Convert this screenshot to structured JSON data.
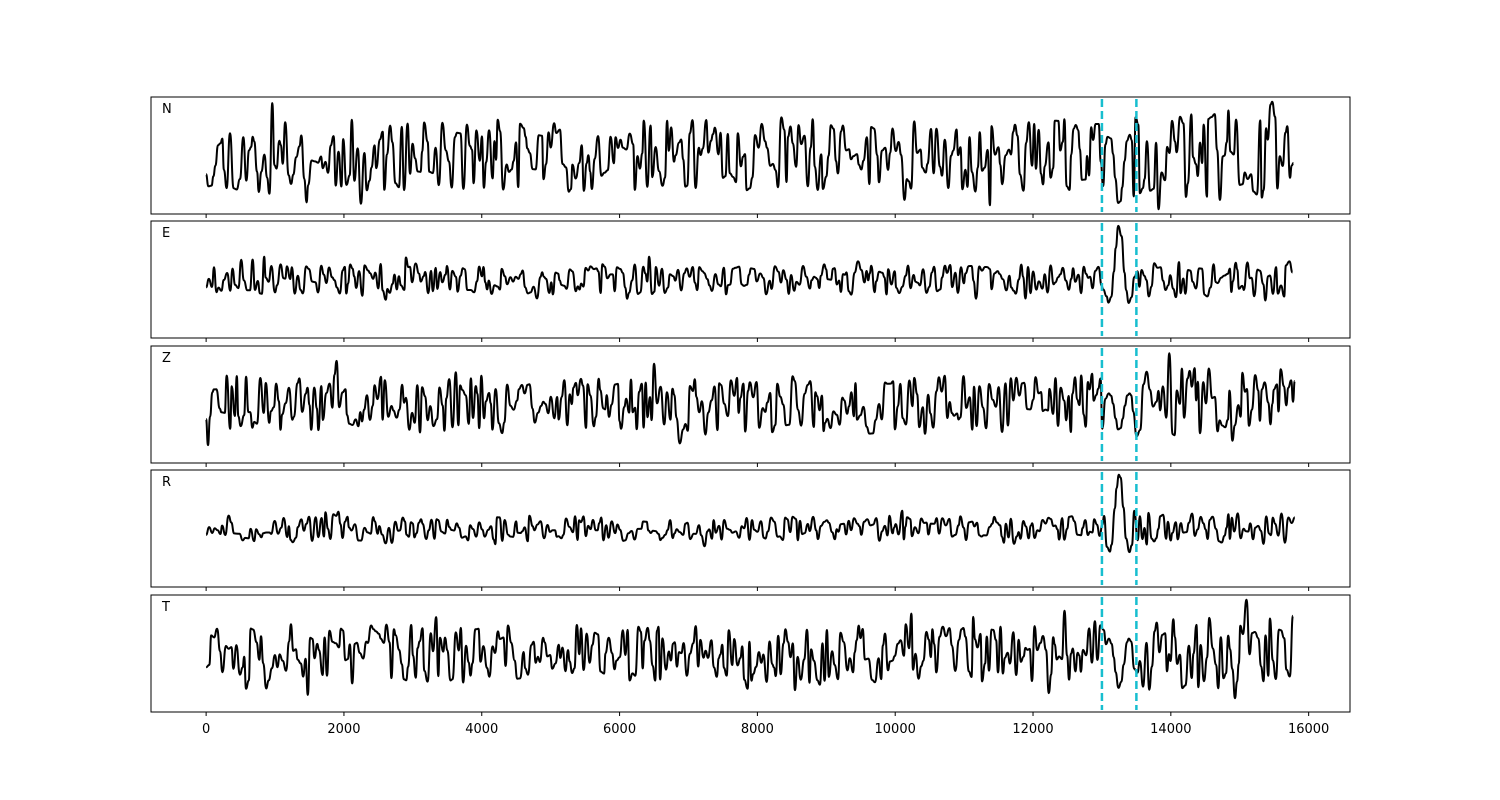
{
  "chart_data": {
    "type": "line",
    "shared_x_axis": true,
    "xlim": [
      -800,
      16600
    ],
    "x_ticks": [
      0,
      2000,
      4000,
      6000,
      8000,
      10000,
      12000,
      14000,
      16000
    ],
    "x_tick_labels": [
      "0",
      "2000",
      "4000",
      "6000",
      "8000",
      "10000",
      "12000",
      "14000",
      "16000"
    ],
    "x_range": [
      0,
      15800
    ],
    "y_ticks_shown": false,
    "grid": false,
    "line_color": "#000000",
    "marker_color": "#17becf",
    "markers": [
      {
        "x": 13000,
        "style": "dashed"
      },
      {
        "x": 13500,
        "style": "dashed"
      }
    ],
    "panels": [
      {
        "label": "N",
        "amplitude": 0.62,
        "event_amp": 0.85,
        "seed": 11
      },
      {
        "label": "E",
        "amplitude": 0.26,
        "event_amp": 0.95,
        "seed": 23
      },
      {
        "label": "Z",
        "amplitude": 0.5,
        "event_amp": 0.45,
        "seed": 37
      },
      {
        "label": "R",
        "amplitude": 0.22,
        "event_amp": 0.95,
        "seed": 51
      },
      {
        "label": "T",
        "amplitude": 0.5,
        "event_amp": 0.6,
        "seed": 73
      }
    ]
  }
}
